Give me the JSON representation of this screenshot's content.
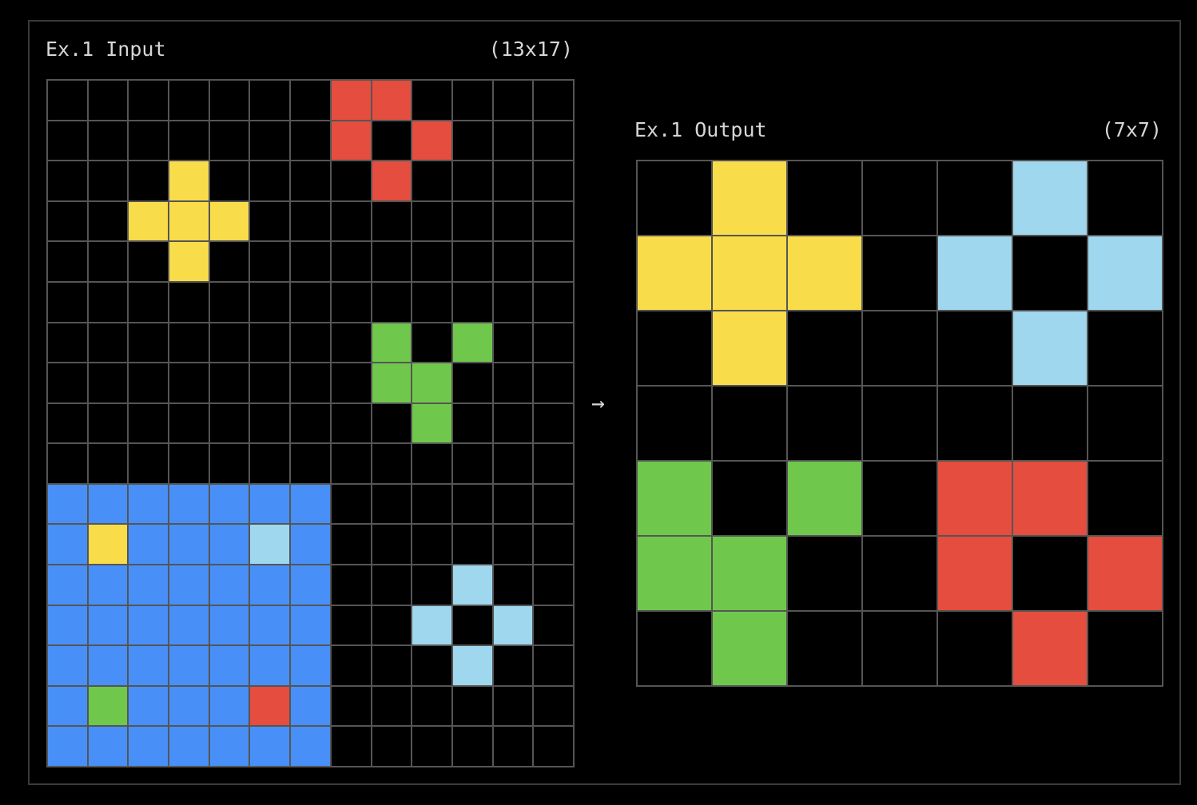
{
  "palette": {
    "0": "#000000",
    "1": "#e54d3e",
    "2": "#f9dc4a",
    "3": "#6fc84b",
    "4": "#4890f8",
    "5": "#9fd7ee"
  },
  "arrow": "→",
  "input": {
    "title": "Ex.1 Input",
    "dims": "(13x17)",
    "rows": 17,
    "cols": 13,
    "grid": [
      [
        0,
        0,
        0,
        0,
        0,
        0,
        0,
        1,
        1,
        0,
        0,
        0,
        0
      ],
      [
        0,
        0,
        0,
        0,
        0,
        0,
        0,
        1,
        0,
        1,
        0,
        0,
        0
      ],
      [
        0,
        0,
        0,
        2,
        0,
        0,
        0,
        0,
        1,
        0,
        0,
        0,
        0
      ],
      [
        0,
        0,
        2,
        2,
        2,
        0,
        0,
        0,
        0,
        0,
        0,
        0,
        0
      ],
      [
        0,
        0,
        0,
        2,
        0,
        0,
        0,
        0,
        0,
        0,
        0,
        0,
        0
      ],
      [
        0,
        0,
        0,
        0,
        0,
        0,
        0,
        0,
        0,
        0,
        0,
        0,
        0
      ],
      [
        0,
        0,
        0,
        0,
        0,
        0,
        0,
        0,
        3,
        0,
        3,
        0,
        0
      ],
      [
        0,
        0,
        0,
        0,
        0,
        0,
        0,
        0,
        3,
        3,
        0,
        0,
        0
      ],
      [
        0,
        0,
        0,
        0,
        0,
        0,
        0,
        0,
        0,
        3,
        0,
        0,
        0
      ],
      [
        0,
        0,
        0,
        0,
        0,
        0,
        0,
        0,
        0,
        0,
        0,
        0,
        0
      ],
      [
        4,
        4,
        4,
        4,
        4,
        4,
        4,
        0,
        0,
        0,
        0,
        0,
        0
      ],
      [
        4,
        2,
        4,
        4,
        4,
        5,
        4,
        0,
        0,
        0,
        0,
        0,
        0
      ],
      [
        4,
        4,
        4,
        4,
        4,
        4,
        4,
        0,
        0,
        0,
        5,
        0,
        0
      ],
      [
        4,
        4,
        4,
        4,
        4,
        4,
        4,
        0,
        0,
        5,
        0,
        5,
        0
      ],
      [
        4,
        4,
        4,
        4,
        4,
        4,
        4,
        0,
        0,
        0,
        5,
        0,
        0
      ],
      [
        4,
        3,
        4,
        4,
        4,
        1,
        4,
        0,
        0,
        0,
        0,
        0,
        0
      ],
      [
        4,
        4,
        4,
        4,
        4,
        4,
        4,
        0,
        0,
        0,
        0,
        0,
        0
      ]
    ]
  },
  "output": {
    "title": "Ex.1 Output",
    "dims": "(7x7)",
    "rows": 7,
    "cols": 7,
    "grid": [
      [
        0,
        2,
        0,
        0,
        0,
        5,
        0
      ],
      [
        2,
        2,
        2,
        0,
        5,
        0,
        5
      ],
      [
        0,
        2,
        0,
        0,
        0,
        5,
        0
      ],
      [
        0,
        0,
        0,
        0,
        0,
        0,
        0
      ],
      [
        3,
        0,
        3,
        0,
        1,
        1,
        0
      ],
      [
        3,
        3,
        0,
        0,
        1,
        0,
        1
      ],
      [
        0,
        3,
        0,
        0,
        0,
        1,
        0
      ]
    ]
  }
}
